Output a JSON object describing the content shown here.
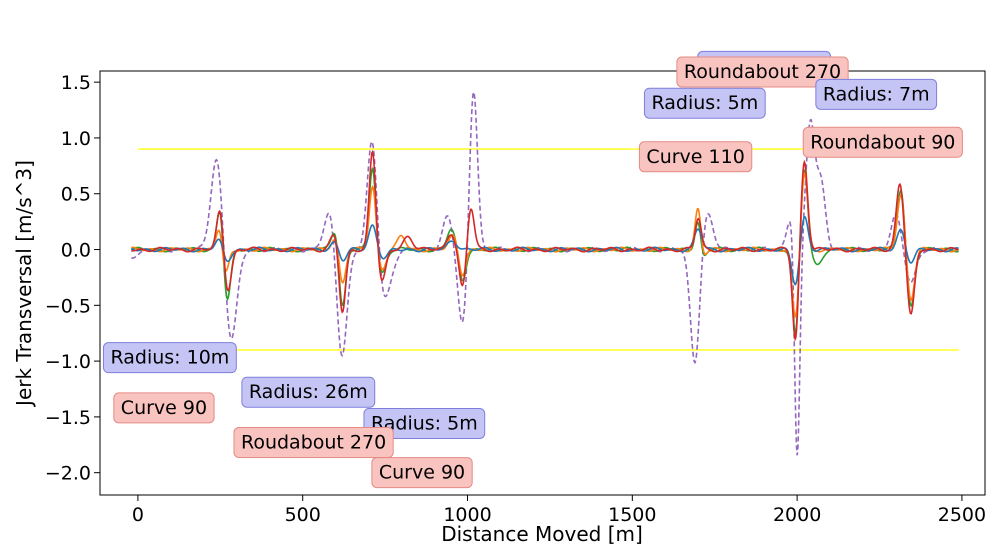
{
  "chart_data": {
    "type": "line",
    "title": "",
    "xlabel": "Distance Moved [m]",
    "ylabel": "Jerk Transversal [m/s^3]",
    "xlim": [
      -115,
      2570
    ],
    "ylim": [
      -2.2,
      1.6
    ],
    "xticks": [
      0,
      500,
      1000,
      1500,
      2000,
      2500
    ],
    "xtick_labels": [
      "0",
      "500",
      "1000",
      "1500",
      "2000",
      "2500"
    ],
    "yticks": [
      -2.0,
      -1.5,
      -1.0,
      -0.5,
      0.0,
      0.5,
      1.0,
      1.5
    ],
    "ytick_labels": [
      "−2.0",
      "−1.5",
      "−1.0",
      "−0.5",
      "0.0",
      "0.5",
      "1.0",
      "1.5"
    ],
    "grid": false,
    "legend": "none",
    "thresholds": [
      {
        "y": 0.9,
        "x": [
          0,
          2490
        ],
        "color": "#ffff33"
      },
      {
        "y": -0.9,
        "x": [
          0,
          2490
        ],
        "color": "#ffff33"
      }
    ],
    "series": [
      {
        "color": "#9467bd",
        "dashed": true,
        "events": [
          [
            -20,
            -0.06,
            30
          ],
          [
            240,
            0.85,
            18
          ],
          [
            282,
            -0.85,
            18
          ],
          [
            585,
            0.38,
            18
          ],
          [
            618,
            -1.0,
            16
          ],
          [
            712,
            1.1,
            15
          ],
          [
            745,
            -0.48,
            22
          ],
          [
            940,
            0.3,
            15
          ],
          [
            985,
            -0.7,
            14
          ],
          [
            1018,
            1.47,
            12
          ],
          [
            1690,
            -1.02,
            14
          ],
          [
            1728,
            0.33,
            16
          ],
          [
            1985,
            0.35,
            14
          ],
          [
            2000,
            -2.05,
            8
          ],
          [
            2040,
            1.12,
            13
          ],
          [
            2072,
            0.6,
            14
          ],
          [
            2300,
            0.3,
            15
          ],
          [
            2345,
            -0.3,
            15
          ]
        ]
      },
      {
        "color": "#2ca02c",
        "dashed": false,
        "events": [
          [
            250,
            0.42,
            10
          ],
          [
            270,
            -0.5,
            11
          ],
          [
            600,
            0.2,
            12
          ],
          [
            620,
            -0.55,
            10
          ],
          [
            712,
            0.75,
            10
          ],
          [
            740,
            -0.22,
            12
          ],
          [
            950,
            0.18,
            12
          ],
          [
            985,
            -0.28,
            10
          ],
          [
            1700,
            0.3,
            9
          ],
          [
            1712,
            -0.12,
            10
          ],
          [
            1995,
            -0.78,
            9
          ],
          [
            2022,
            0.72,
            10
          ],
          [
            2060,
            -0.14,
            14
          ],
          [
            2315,
            0.55,
            11
          ],
          [
            2345,
            -0.52,
            11
          ]
        ]
      },
      {
        "color": "#ff7f0e",
        "dashed": false,
        "events": [
          [
            248,
            0.22,
            10
          ],
          [
            265,
            -0.25,
            10
          ],
          [
            600,
            0.12,
            12
          ],
          [
            620,
            -0.33,
            10
          ],
          [
            712,
            0.58,
            10
          ],
          [
            740,
            -0.18,
            12
          ],
          [
            800,
            0.12,
            12
          ],
          [
            955,
            0.12,
            12
          ],
          [
            985,
            -0.22,
            10
          ],
          [
            1700,
            0.4,
            9
          ],
          [
            1712,
            -0.1,
            10
          ],
          [
            1995,
            -0.63,
            10
          ],
          [
            2022,
            0.7,
            10
          ],
          [
            2315,
            0.5,
            11
          ],
          [
            2345,
            -0.45,
            11
          ]
        ]
      },
      {
        "color": "#1f77b4",
        "dashed": false,
        "events": [
          [
            248,
            0.1,
            12
          ],
          [
            268,
            -0.12,
            12
          ],
          [
            600,
            0.08,
            14
          ],
          [
            620,
            -0.12,
            12
          ],
          [
            712,
            0.22,
            12
          ],
          [
            745,
            -0.08,
            14
          ],
          [
            955,
            0.08,
            14
          ],
          [
            1700,
            0.18,
            11
          ],
          [
            1995,
            -0.32,
            11
          ],
          [
            2022,
            0.3,
            11
          ],
          [
            2315,
            0.18,
            12
          ],
          [
            2345,
            -0.12,
            12
          ]
        ]
      },
      {
        "color": "#d62728",
        "dashed": false,
        "events": [
          [
            250,
            0.38,
            10
          ],
          [
            272,
            -0.38,
            11
          ],
          [
            598,
            0.15,
            13
          ],
          [
            620,
            -0.6,
            10
          ],
          [
            712,
            0.9,
            10
          ],
          [
            740,
            -0.3,
            12
          ],
          [
            820,
            0.12,
            14
          ],
          [
            950,
            0.15,
            12
          ],
          [
            985,
            -0.35,
            10
          ],
          [
            1010,
            0.38,
            10
          ],
          [
            1700,
            0.28,
            9
          ],
          [
            1995,
            -0.82,
            9
          ],
          [
            2022,
            0.8,
            10
          ],
          [
            2312,
            0.6,
            11
          ],
          [
            2345,
            -0.6,
            11
          ]
        ]
      }
    ],
    "annotations": [
      {
        "text": "Radius: 10m",
        "x": 1900,
        "y": 1.65,
        "type": "radius"
      },
      {
        "text": "Roundabout 270",
        "x": 1895,
        "y": 1.6,
        "type": "structure"
      },
      {
        "text": "Radius: 5m",
        "x": 1720,
        "y": 1.32,
        "type": "radius"
      },
      {
        "text": "Radius: 7m",
        "x": 2240,
        "y": 1.4,
        "type": "radius"
      },
      {
        "text": "Roundabout 90",
        "x": 2260,
        "y": 0.97,
        "type": "structure"
      },
      {
        "text": "Curve 110",
        "x": 1692,
        "y": 0.84,
        "type": "structure"
      },
      {
        "text": "Radius: 10m",
        "x": 97,
        "y": -0.96,
        "type": "radius"
      },
      {
        "text": "Radius: 26m",
        "x": 517,
        "y": -1.27,
        "type": "radius"
      },
      {
        "text": "Curve 90",
        "x": 79,
        "y": -1.41,
        "type": "structure"
      },
      {
        "text": "Radius: 5m",
        "x": 869,
        "y": -1.55,
        "type": "radius"
      },
      {
        "text": "Roudabout 270",
        "x": 533,
        "y": -1.72,
        "type": "structure"
      },
      {
        "text": "Curve 90",
        "x": 862,
        "y": -1.99,
        "type": "structure"
      }
    ],
    "box_colors": {
      "radius": {
        "fill": "#c5c5f5",
        "stroke": "#7f7fdd"
      },
      "structure": {
        "fill": "#f9c4c0",
        "stroke": "#e58a84"
      }
    }
  }
}
